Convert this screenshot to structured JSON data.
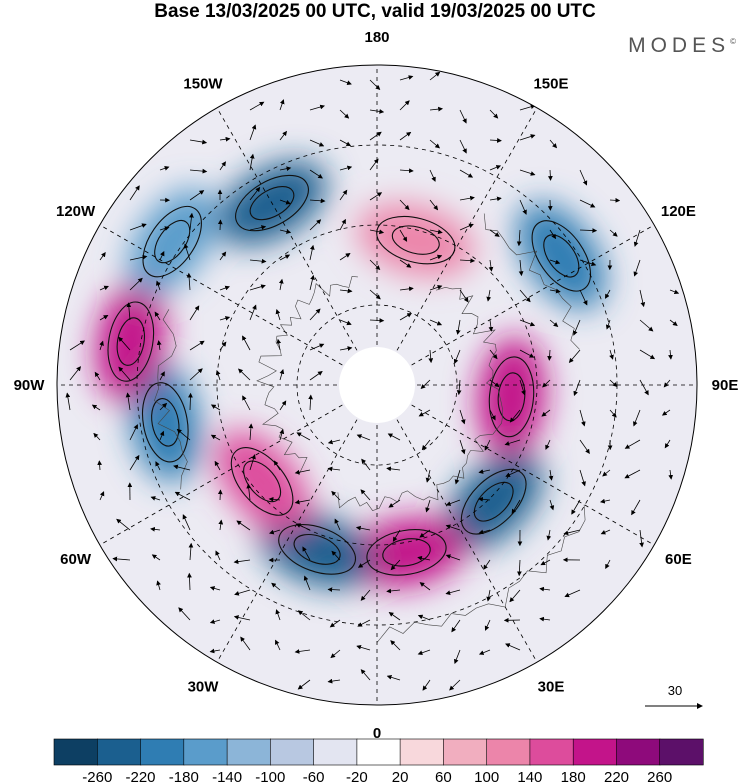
{
  "title": "Base 13/03/2025 00 UTC, valid 19/03/2025 00 UTC",
  "brand": "MODES",
  "brand_mark": "©",
  "longitude_labels": [
    {
      "text": "180",
      "lon": 180
    },
    {
      "text": "150E",
      "lon": 150
    },
    {
      "text": "120E",
      "lon": 120
    },
    {
      "text": "90E",
      "lon": 90
    },
    {
      "text": "60E",
      "lon": 60
    },
    {
      "text": "30E",
      "lon": 30
    },
    {
      "text": "0",
      "lon": 0
    },
    {
      "text": "30W",
      "lon": -30
    },
    {
      "text": "60W",
      "lon": -60
    },
    {
      "text": "90W",
      "lon": -90
    },
    {
      "text": "120W",
      "lon": -120
    },
    {
      "text": "150W",
      "lon": -150
    }
  ],
  "reference_vector": "30",
  "colorbar": {
    "ticks": [
      "-260",
      "-220",
      "-180",
      "-140",
      "-100",
      "-60",
      "-20",
      "20",
      "60",
      "100",
      "140",
      "180",
      "220",
      "260"
    ],
    "colors": [
      "#0d3f63",
      "#1b5f8f",
      "#2f7db3",
      "#5a9ccb",
      "#8cb5d8",
      "#b8c8e1",
      "#e3e5f1",
      "#ffffff",
      "#f8d8dc",
      "#f1aebf",
      "#ec85aa",
      "#dd4c9c",
      "#c3148a",
      "#8e0a7b",
      "#5c1069"
    ]
  },
  "anomaly_centers": [
    {
      "lon": 165,
      "color": "#ec85aa"
    },
    {
      "lon": 125,
      "color": "#2f7db3"
    },
    {
      "lon": 85,
      "color": "#c3148a"
    },
    {
      "lon": 45,
      "color": "#1b5f8f"
    },
    {
      "lon": 10,
      "color": "#c3148a"
    },
    {
      "lon": -20,
      "color": "#1b5f8f"
    },
    {
      "lon": -50,
      "color": "#dd4c9c"
    },
    {
      "lon": -80,
      "color": "#2f7db3"
    },
    {
      "lon": -100,
      "color": "#c3148a"
    },
    {
      "lon": -125,
      "color": "#5a9ccb"
    },
    {
      "lon": -150,
      "color": "#1b5f8f"
    }
  ]
}
